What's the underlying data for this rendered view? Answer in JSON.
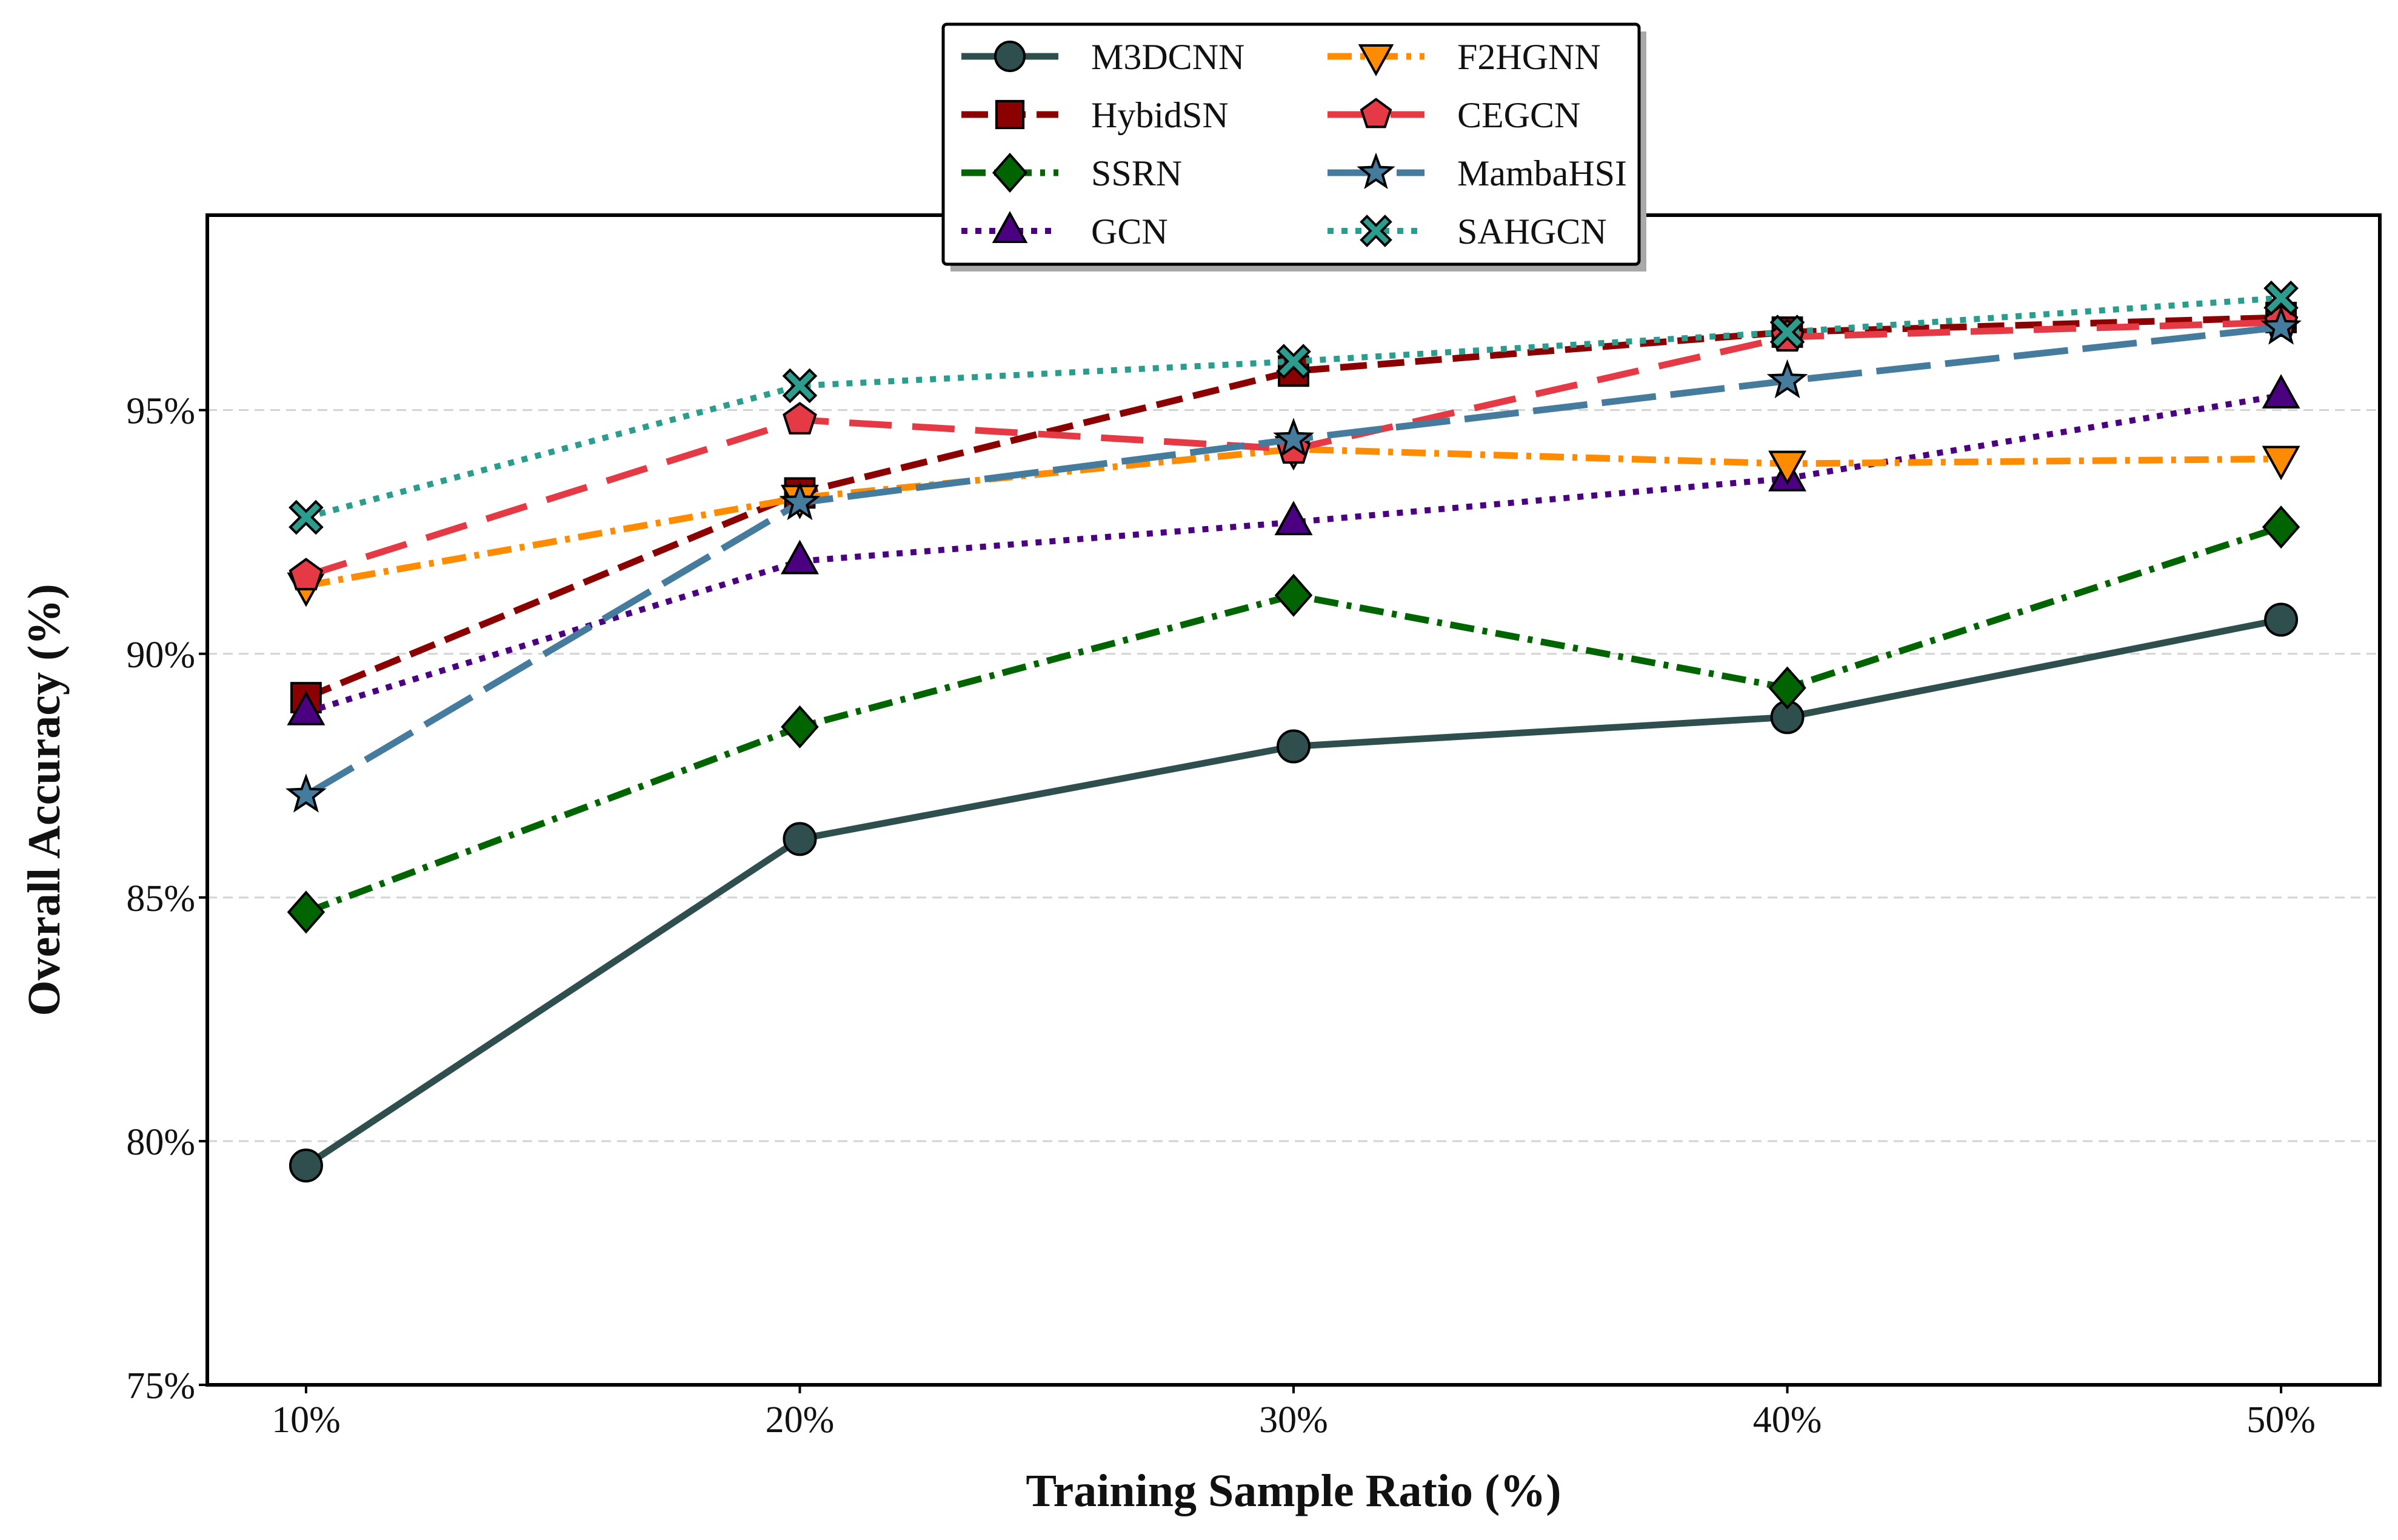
{
  "chart_data": {
    "type": "line",
    "title": "",
    "xlabel": "Training Sample Ratio (%)",
    "ylabel": "Overall Accuracy (%)",
    "categories": [
      "10%",
      "20%",
      "30%",
      "40%",
      "50%"
    ],
    "x": [
      10,
      20,
      30,
      40,
      50
    ],
    "xlim": [
      8,
      52
    ],
    "ylim": [
      75,
      99
    ],
    "yticks": [
      75,
      80,
      85,
      90,
      95
    ],
    "ytick_labels": [
      "75%",
      "80%",
      "85%",
      "90%",
      "95%"
    ],
    "grid": "horizontal-dashed",
    "legend_position": "top-center, above plot, 2 columns",
    "series": [
      {
        "name": "M3DCNN",
        "values": [
          79.5,
          86.2,
          88.1,
          88.7,
          90.7
        ],
        "color": "#2f4f4f",
        "dash": "solid",
        "marker": "circle"
      },
      {
        "name": "HybidSN",
        "values": [
          89.1,
          93.3,
          95.8,
          96.6,
          96.9
        ],
        "color": "#8b0000",
        "dash": "dashed",
        "marker": "square"
      },
      {
        "name": "SSRN",
        "values": [
          84.7,
          88.5,
          91.2,
          89.3,
          92.6
        ],
        "color": "#006400",
        "dash": "dashdot",
        "marker": "diamond"
      },
      {
        "name": "GCN",
        "values": [
          88.8,
          91.9,
          92.7,
          93.6,
          95.3
        ],
        "color": "#4b0082",
        "dash": "dotted",
        "marker": "triangle-up"
      },
      {
        "name": "F2HGNN",
        "values": [
          91.4,
          93.2,
          94.2,
          93.9,
          94.0
        ],
        "color": "#ff8c00",
        "dash": "dashdot",
        "marker": "triangle-down"
      },
      {
        "name": "CEGCN",
        "values": [
          91.6,
          94.8,
          94.2,
          96.5,
          96.8
        ],
        "color": "#e63946",
        "dash": "longdash",
        "marker": "pentagon"
      },
      {
        "name": "MambaHSI",
        "values": [
          87.1,
          93.1,
          94.4,
          95.6,
          96.7
        ],
        "color": "#457b9d",
        "dash": "longdash2",
        "marker": "star"
      },
      {
        "name": "SAHGCN",
        "values": [
          92.8,
          95.5,
          96.0,
          96.6,
          97.3
        ],
        "color": "#2a9d8f",
        "dash": "dotted",
        "marker": "x"
      }
    ]
  }
}
